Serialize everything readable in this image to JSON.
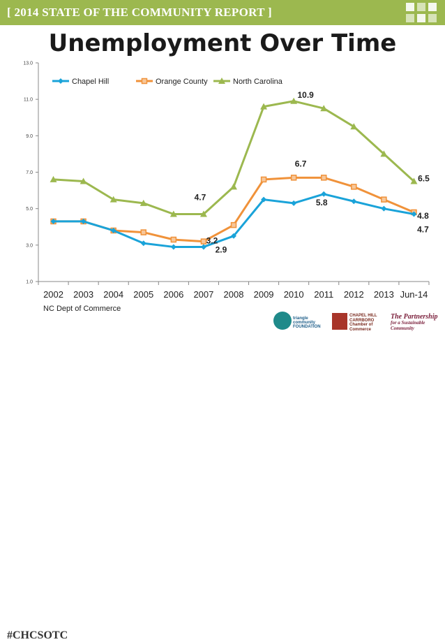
{
  "banner": {
    "text": "[ 2014 STATE OF THE COMMUNITY REPORT ]",
    "color": "#9cb84f"
  },
  "footer": {
    "source": "NC Dept of Commerce",
    "hashtag": "#CHCSOTC",
    "logos": {
      "triangle": [
        "triangle community",
        "FOUNDATION"
      ],
      "chapel_hill": [
        "CHAPEL HILL",
        "CARRBORO",
        "Chamber of Commerce"
      ],
      "partnership": [
        "The Partnership",
        "for a Sustainable Community"
      ]
    }
  },
  "chart_data": {
    "type": "line",
    "title": "Unemployment Over Time",
    "categories": [
      "2002",
      "2003",
      "2004",
      "2005",
      "2006",
      "2007",
      "2008",
      "2009",
      "2010",
      "2011",
      "2012",
      "2013",
      "Jun-14"
    ],
    "ylim": [
      1.0,
      13.0
    ],
    "yticks": [
      "1.0",
      "3.0",
      "5.0",
      "7.0",
      "9.0",
      "11.0",
      "13.0"
    ],
    "grid": false,
    "legend_position": "top-left",
    "series": [
      {
        "name": "Chapel Hill",
        "color": "#1aa3d9",
        "marker": "diamond",
        "values": [
          4.3,
          4.3,
          3.8,
          3.1,
          2.9,
          2.9,
          3.5,
          5.5,
          5.3,
          5.8,
          5.4,
          5.0,
          4.7
        ]
      },
      {
        "name": "Orange County",
        "color": "#f0923a",
        "marker": "square",
        "values": [
          4.3,
          4.3,
          3.8,
          3.7,
          3.3,
          3.2,
          4.1,
          6.6,
          6.7,
          6.7,
          6.2,
          5.5,
          4.8
        ]
      },
      {
        "name": "North Carolina",
        "color": "#9cb84f",
        "marker": "triangle",
        "values": [
          6.6,
          6.5,
          5.5,
          5.3,
          4.7,
          4.7,
          6.2,
          10.6,
          10.9,
          10.5,
          9.5,
          8.0,
          6.5
        ]
      }
    ],
    "annotations": [
      {
        "text": "10.9",
        "x": "2010",
        "y": 10.9
      },
      {
        "text": "6.7",
        "x": "2010",
        "y": 6.7
      },
      {
        "text": "5.8",
        "x": "2011",
        "y": 5.8
      },
      {
        "text": "4.7",
        "x": "2007",
        "y": 4.7
      },
      {
        "text": "3.2",
        "x": "2007",
        "y": 3.2
      },
      {
        "text": "2.9",
        "x": "2007",
        "y": 2.9
      },
      {
        "text": "6.5",
        "x": "Jun-14",
        "y": 6.5
      },
      {
        "text": "4.8",
        "x": "Jun-14",
        "y": 4.8
      },
      {
        "text": "4.7",
        "x": "Jun-14",
        "y": 4.7
      }
    ]
  }
}
